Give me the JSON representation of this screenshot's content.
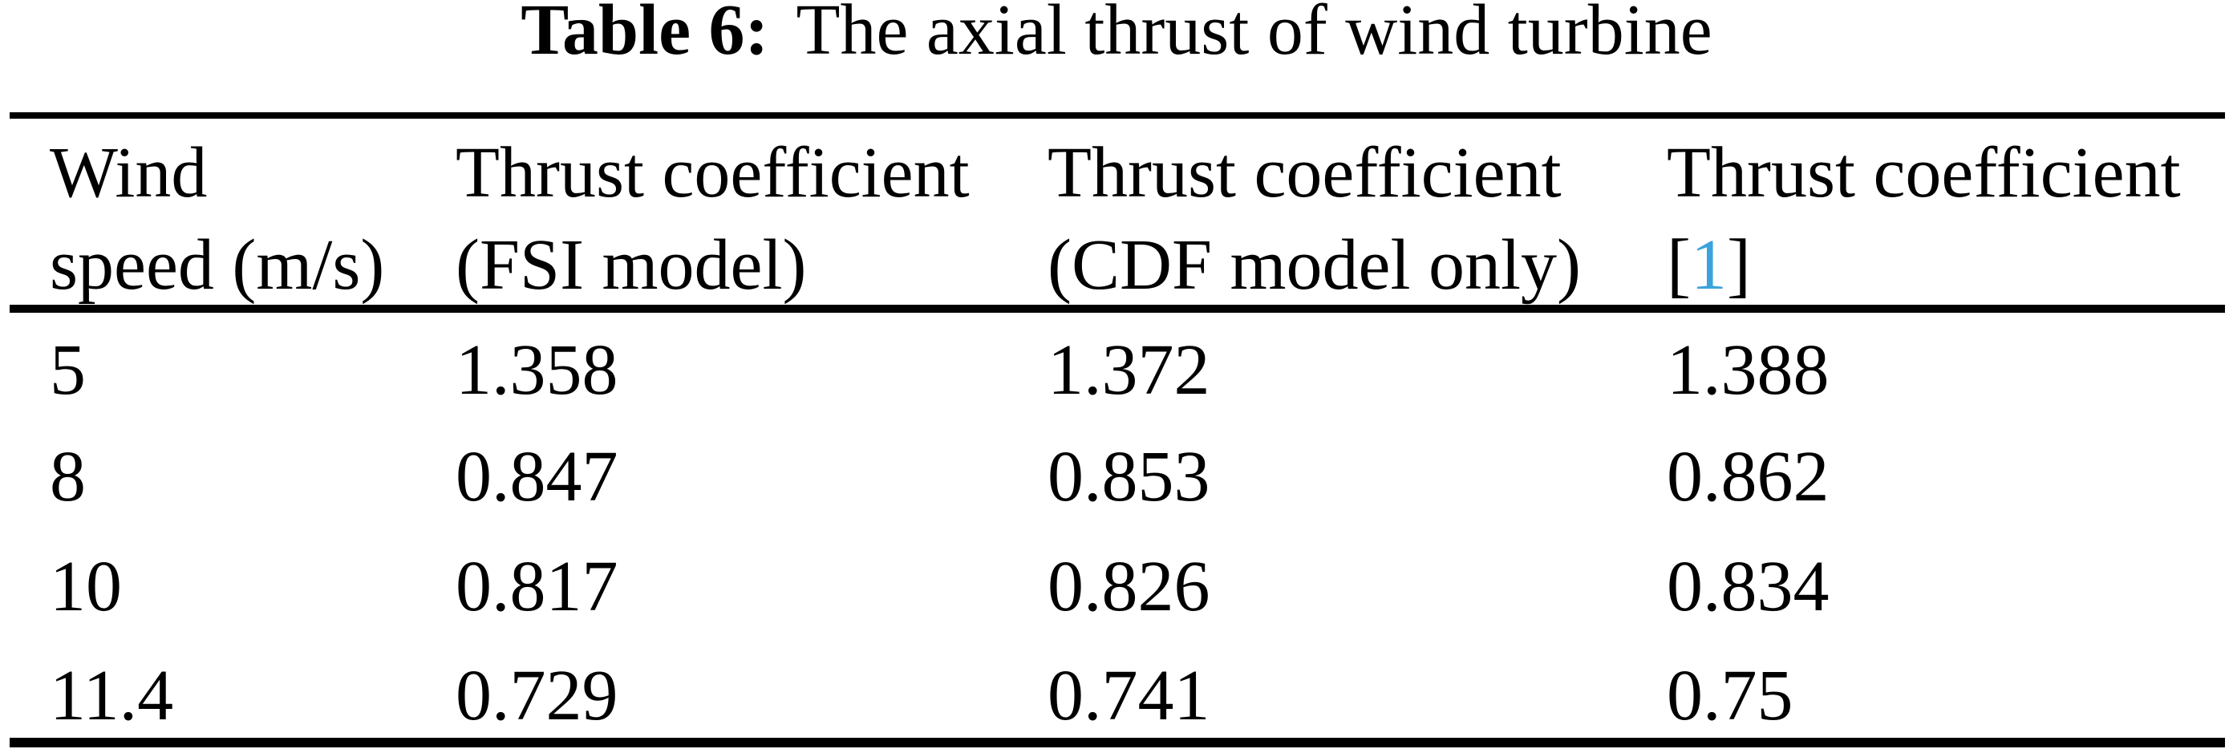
{
  "caption": {
    "label": "Table 6:",
    "text": "The axial thrust of wind turbine"
  },
  "table": {
    "columns": [
      {
        "header_line1": "Wind",
        "header_line2": "speed (m/s)"
      },
      {
        "header_line1": "Thrust coefficient",
        "header_line2": "(FSI model)"
      },
      {
        "header_line1": "Thrust coefficient",
        "header_line2": "(CDF model only)"
      },
      {
        "header_line1": "Thrust coefficient",
        "ref_open": "[",
        "ref_label": "1",
        "ref_close": "]"
      }
    ],
    "rows": [
      [
        "5",
        "1.358",
        "1.372",
        "1.388"
      ],
      [
        "8",
        "0.847",
        "0.853",
        "0.862"
      ],
      [
        "10",
        "0.817",
        "0.826",
        "0.834"
      ],
      [
        "11.4",
        "0.729",
        "0.741",
        "0.75"
      ]
    ]
  },
  "colors": {
    "text": "#000000",
    "rule": "#000000",
    "citation_link": "#3ba3dc",
    "background": "#ffffff"
  }
}
